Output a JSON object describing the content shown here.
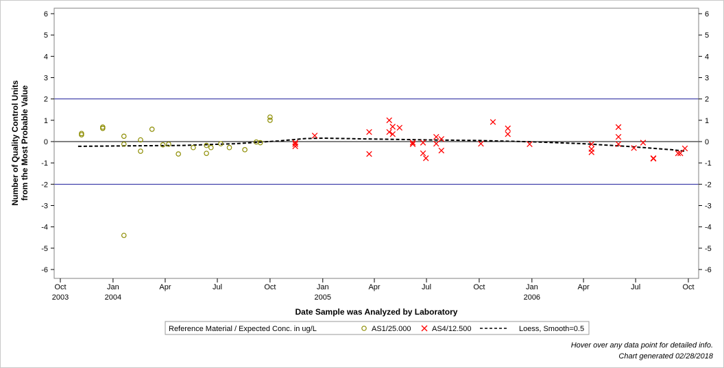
{
  "chart_data": {
    "type": "scatter",
    "xlabel": "Date Sample was Analyzed by Laboratory",
    "ylabel": [
      "Number of Quality Control Units",
      "from the Most Probable Value"
    ],
    "ylim": [
      -6,
      6
    ],
    "xlim": [
      "2003-10-01",
      "2006-10-01"
    ],
    "yticks": [
      -6,
      -5,
      -4,
      -3,
      -2,
      -1,
      0,
      1,
      2,
      3,
      4,
      5,
      6
    ],
    "xticks": [
      {
        "date": "2003-10-01",
        "line1": "Oct",
        "line2": "2003"
      },
      {
        "date": "2004-01-01",
        "line1": "Jan",
        "line2": "2004"
      },
      {
        "date": "2004-04-01",
        "line1": "Apr",
        "line2": ""
      },
      {
        "date": "2004-07-01",
        "line1": "Jul",
        "line2": ""
      },
      {
        "date": "2004-10-01",
        "line1": "Oct",
        "line2": ""
      },
      {
        "date": "2005-01-01",
        "line1": "Jan",
        "line2": "2005"
      },
      {
        "date": "2005-04-01",
        "line1": "Apr",
        "line2": ""
      },
      {
        "date": "2005-07-01",
        "line1": "Jul",
        "line2": ""
      },
      {
        "date": "2005-10-01",
        "line1": "Oct",
        "line2": ""
      },
      {
        "date": "2006-01-01",
        "line1": "Jan",
        "line2": "2006"
      },
      {
        "date": "2006-04-01",
        "line1": "Apr",
        "line2": ""
      },
      {
        "date": "2006-07-01",
        "line1": "Jul",
        "line2": ""
      },
      {
        "date": "2006-10-01",
        "line1": "Oct",
        "line2": ""
      }
    ],
    "reference_lines": [
      2,
      0,
      -2
    ],
    "legend": {
      "title": "Reference Material / Expected Conc. in ug/L",
      "position": "bottom-center",
      "entries": [
        "AS1/25.000",
        "AS4/12.500",
        "Loess, Smooth=0.5"
      ]
    },
    "series": [
      {
        "name": "AS1/25.000",
        "marker": "circle",
        "color": "#8c8c00",
        "points": [
          [
            "2003-11-07",
            0.38
          ],
          [
            "2003-11-07",
            0.32
          ],
          [
            "2003-12-14",
            0.68
          ],
          [
            "2003-12-14",
            0.62
          ],
          [
            "2004-01-20",
            0.25
          ],
          [
            "2004-01-20",
            -0.12
          ],
          [
            "2004-01-20",
            -4.4
          ],
          [
            "2004-02-18",
            0.08
          ],
          [
            "2004-02-18",
            -0.45
          ],
          [
            "2004-03-09",
            0.58
          ],
          [
            "2004-03-28",
            -0.15
          ],
          [
            "2004-04-07",
            -0.12
          ],
          [
            "2004-04-24",
            -0.58
          ],
          [
            "2004-05-20",
            -0.28
          ],
          [
            "2004-06-12",
            -0.55
          ],
          [
            "2004-06-12",
            -0.18
          ],
          [
            "2004-06-20",
            -0.28
          ],
          [
            "2004-07-07",
            -0.1
          ],
          [
            "2004-07-22",
            -0.28
          ],
          [
            "2004-08-18",
            -0.38
          ],
          [
            "2004-09-07",
            -0.02
          ],
          [
            "2004-09-14",
            -0.05
          ],
          [
            "2004-10-01",
            1.15
          ],
          [
            "2004-10-01",
            1.0
          ]
        ]
      },
      {
        "name": "AS4/12.500",
        "marker": "x",
        "color": "#ff0000",
        "points": [
          [
            "2004-11-14",
            -0.05
          ],
          [
            "2004-11-14",
            -0.12
          ],
          [
            "2004-11-14",
            -0.22
          ],
          [
            "2004-12-18",
            0.28
          ],
          [
            "2005-03-23",
            0.45
          ],
          [
            "2005-03-23",
            -0.58
          ],
          [
            "2005-04-27",
            1.0
          ],
          [
            "2005-04-27",
            0.45
          ],
          [
            "2005-05-03",
            0.7
          ],
          [
            "2005-05-03",
            0.35
          ],
          [
            "2005-05-15",
            0.65
          ],
          [
            "2005-06-07",
            -0.05
          ],
          [
            "2005-06-07",
            -0.12
          ],
          [
            "2005-06-25",
            -0.05
          ],
          [
            "2005-06-25",
            -0.55
          ],
          [
            "2005-06-30",
            -0.78
          ],
          [
            "2005-07-18",
            0.22
          ],
          [
            "2005-07-18",
            -0.1
          ],
          [
            "2005-07-27",
            0.12
          ],
          [
            "2005-07-27",
            -0.42
          ],
          [
            "2005-10-04",
            -0.1
          ],
          [
            "2005-10-25",
            0.92
          ],
          [
            "2005-11-20",
            0.62
          ],
          [
            "2005-11-20",
            0.35
          ],
          [
            "2005-12-28",
            -0.12
          ],
          [
            "2006-04-15",
            -0.12
          ],
          [
            "2006-04-15",
            -0.35
          ],
          [
            "2006-04-15",
            -0.5
          ],
          [
            "2006-06-01",
            0.68
          ],
          [
            "2006-06-01",
            0.22
          ],
          [
            "2006-06-01",
            -0.12
          ],
          [
            "2006-06-28",
            -0.3
          ],
          [
            "2006-07-14",
            -0.05
          ],
          [
            "2006-08-01",
            -0.8
          ],
          [
            "2006-08-01",
            -0.78
          ],
          [
            "2006-09-13",
            -0.55
          ],
          [
            "2006-09-17",
            -0.55
          ],
          [
            "2006-09-25",
            -0.32
          ]
        ]
      },
      {
        "name": "Loess, Smooth=0.5",
        "type": "line",
        "dash": "dashed",
        "color": "#000000",
        "points": [
          [
            "2003-11-01",
            -0.22
          ],
          [
            "2004-02-01",
            -0.2
          ],
          [
            "2004-05-01",
            -0.18
          ],
          [
            "2004-08-01",
            -0.1
          ],
          [
            "2004-10-15",
            0.03
          ],
          [
            "2004-12-01",
            0.14
          ],
          [
            "2005-01-01",
            0.16
          ],
          [
            "2005-04-01",
            0.12
          ],
          [
            "2005-07-01",
            0.08
          ],
          [
            "2005-10-01",
            0.05
          ],
          [
            "2006-01-01",
            -0.01
          ],
          [
            "2006-04-01",
            -0.1
          ],
          [
            "2006-06-15",
            -0.22
          ],
          [
            "2006-09-01",
            -0.38
          ],
          [
            "2006-09-25",
            -0.45
          ]
        ]
      }
    ]
  },
  "notes": {
    "hover": "Hover over any data point for detailed info.",
    "generated": "Chart generated 02/28/2018"
  }
}
